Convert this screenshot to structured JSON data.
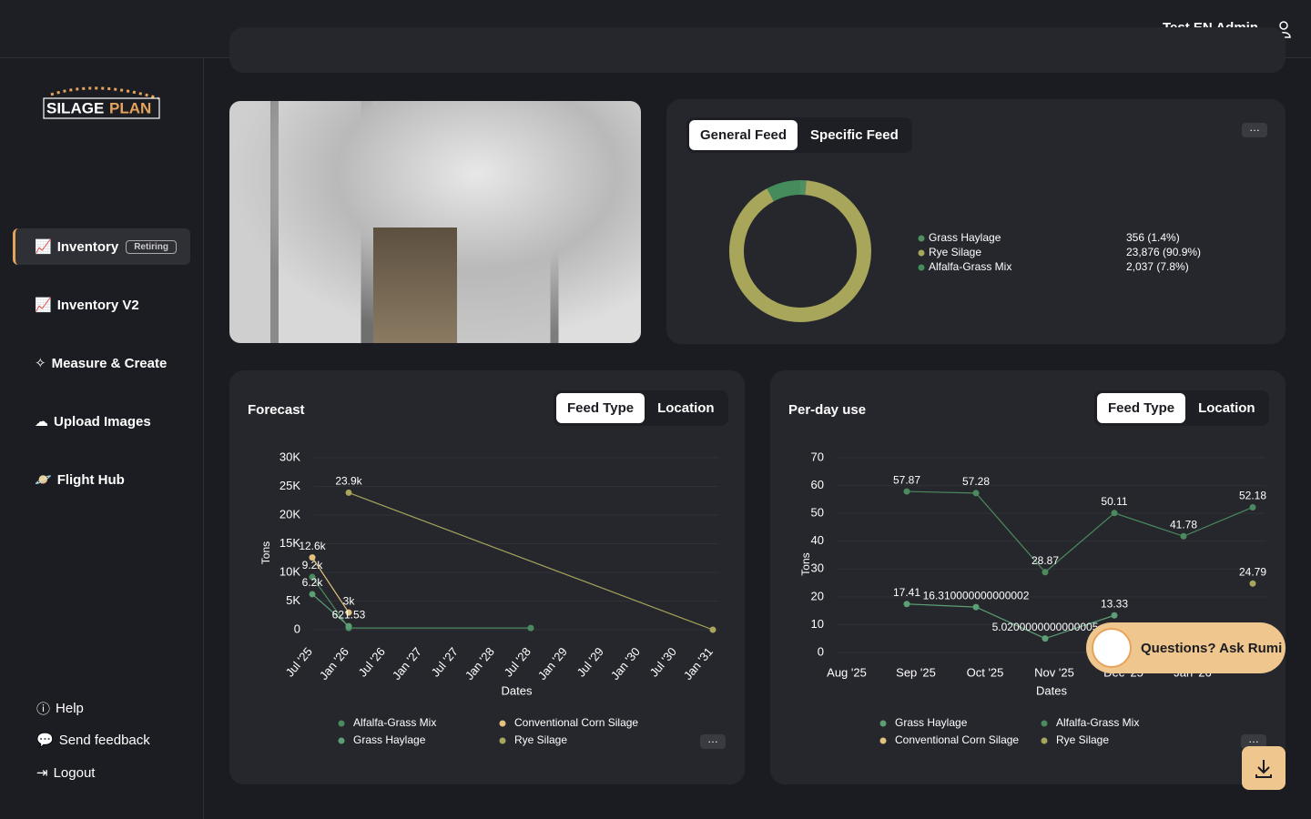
{
  "header": {
    "user": "Test EN Admin"
  },
  "sidebar": {
    "logo": {
      "left": "SILAGE",
      "right": "PLAN"
    },
    "nav": [
      {
        "label": "Inventory",
        "badge": "Retiring"
      },
      {
        "label": "Inventory V2"
      },
      {
        "label": "Measure & Create"
      },
      {
        "label": "Upload Images"
      },
      {
        "label": "Flight Hub"
      }
    ],
    "footer": [
      "Help",
      "Send feedback",
      "Logout"
    ]
  },
  "feed_tabs": [
    "General Feed",
    "Specific Feed"
  ],
  "forecast_card": {
    "title": "Forecast",
    "tabs": [
      "Feed Type",
      "Location"
    ]
  },
  "per_day_card": {
    "title": "Per-day use",
    "tabs": [
      "Feed Type",
      "Location"
    ]
  },
  "assistant": {
    "label": "Questions? Ask Rumi"
  },
  "chart_data": [
    {
      "type": "pie",
      "categories": [
        "Grass Haylage",
        "Rye Silage",
        "Alfalfa-Grass Mix"
      ],
      "values": [
        356,
        23876,
        2037
      ],
      "value_labels": [
        "356 (1.4%)",
        "23,876 (90.9%)",
        "2,037 (7.8%)"
      ],
      "colors": [
        "#4f8f62",
        "#a8a65b",
        "#448c5c"
      ]
    },
    {
      "type": "line",
      "x_label": "Dates",
      "y_label": "Tons",
      "categories": [
        "Jul '25",
        "Jan '26",
        "Jul '26",
        "Jan '27",
        "Jul '27",
        "Jan '28",
        "Jul '28",
        "Jan '29",
        "Jul '29",
        "Jan '30",
        "Jul '30",
        "Jan '31"
      ],
      "ylim": [
        0,
        30000
      ],
      "yticks": [
        0,
        {
          "value": 5000,
          "label": "5K"
        },
        {
          "value": 10000,
          "label": "10K"
        },
        {
          "value": 15000,
          "label": "15K"
        },
        {
          "value": 20000,
          "label": "20K"
        },
        {
          "value": 25000,
          "label": "25K"
        },
        {
          "value": 30000,
          "label": "30K"
        }
      ],
      "grid": true,
      "series": [
        {
          "name": "Alfalfa-Grass Mix",
          "color": "#4a8a5e",
          "x": [
            "Jul '25",
            "Jan '26",
            "Jul '28"
          ],
          "values": [
            9200,
            300,
            300
          ],
          "value_labels": [
            "9.2k",
            null,
            null
          ]
        },
        {
          "name": "Conventional Corn Silage",
          "color": "#e2c27e",
          "x": [
            "Jul '25",
            "Jan '26"
          ],
          "values": [
            12600,
            3000
          ],
          "value_labels": [
            "12.6k",
            "3k"
          ]
        },
        {
          "name": "Grass Haylage",
          "color": "#5c9f74",
          "x": [
            "Jul '25",
            "Jan '26"
          ],
          "values": [
            6200,
            621.53
          ],
          "value_labels": [
            "6.2k",
            "621.53"
          ]
        },
        {
          "name": "Rye Silage",
          "color": "#a8a65b",
          "x": [
            "Jan '26",
            "Jan '31"
          ],
          "values": [
            23900,
            0
          ],
          "value_labels": [
            "23.9k",
            null
          ]
        }
      ]
    },
    {
      "type": "line",
      "x_label": "Dates",
      "y_label": "Tons",
      "categories": [
        "Aug '25",
        "Sep '25",
        "Oct '25",
        "Nov '25",
        "Dec '25",
        "Jan '26",
        null
      ],
      "ylim": [
        0,
        70
      ],
      "yticks": [
        0,
        10,
        20,
        30,
        40,
        50,
        60,
        70
      ],
      "grid": true,
      "series": [
        {
          "name": "Grass Haylage",
          "color": "#5c9f74",
          "x": [
            "Sep '25",
            "Oct '25",
            "Nov '25",
            "Dec '25"
          ],
          "values": [
            17.41,
            16.310000000000002,
            5.0200000000000005,
            13.33
          ]
        },
        {
          "name": "Alfalfa-Grass Mix",
          "color": "#4a8a5e",
          "x": [
            "Sep '25",
            "Oct '25",
            "Nov '25",
            "Dec '25",
            "Jan '26",
            null
          ],
          "values": [
            57.87,
            57.28,
            28.87,
            50.11,
            41.78,
            52.18
          ]
        },
        {
          "name": "Conventional Corn Silage",
          "color": "#e2c27e",
          "x": [],
          "values": []
        },
        {
          "name": "Rye Silage",
          "color": "#a8a65b",
          "x": [
            null
          ],
          "values": [
            24.79
          ]
        }
      ]
    }
  ]
}
